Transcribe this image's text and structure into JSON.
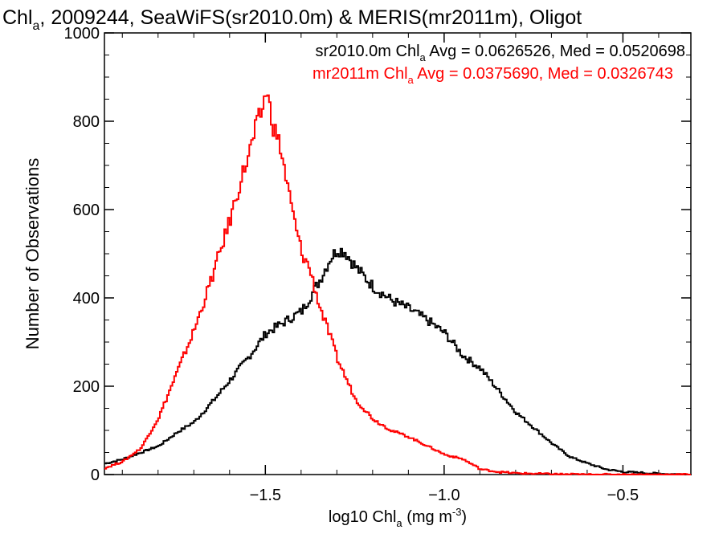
{
  "chart_data": {
    "type": "line",
    "title": {
      "part1": "Chl",
      "sub": "a",
      "part2": ", 2009244, SeaWiFS(sr2010.0m) & MERIS(mr2011m), Oligot"
    },
    "xlabel": {
      "pre": "log10 Chl",
      "sub": "a",
      "mid": " (mg m",
      "sup": "-3",
      "post": ")"
    },
    "ylabel": "Number of Observations",
    "xlim": [
      -1.95,
      -0.31
    ],
    "ylim": [
      0,
      1000
    ],
    "xticks": [
      {
        "value": -1.5,
        "label": "−1.5"
      },
      {
        "value": -1.0,
        "label": "−1.0"
      },
      {
        "value": -0.5,
        "label": "−0.5"
      }
    ],
    "yticks": [
      {
        "value": 0,
        "label": "0"
      },
      {
        "value": 200,
        "label": "200"
      },
      {
        "value": 400,
        "label": "400"
      },
      {
        "value": 600,
        "label": "600"
      },
      {
        "value": 800,
        "label": "800"
      },
      {
        "value": 1000,
        "label": "1000"
      }
    ],
    "grid": false,
    "legend_placement": "top-right",
    "series": [
      {
        "color": "#000000",
        "legend": {
          "pre": "sr2010.0m Chl",
          "sub": "a",
          "post": " Avg = 0.0626526, Med = 0.0520698"
        },
        "x": [
          -1.95,
          -1.9,
          -1.85,
          -1.8,
          -1.75,
          -1.7,
          -1.65,
          -1.6,
          -1.55,
          -1.5,
          -1.45,
          -1.4,
          -1.35,
          -1.32,
          -1.3,
          -1.28,
          -1.25,
          -1.2,
          -1.15,
          -1.1,
          -1.05,
          -1.0,
          -0.95,
          -0.9,
          -0.85,
          -0.8,
          -0.75,
          -0.7,
          -0.65,
          -0.6,
          -0.55,
          -0.5,
          -0.45,
          -0.4,
          -0.35,
          -0.31
        ],
        "y": [
          25,
          35,
          50,
          65,
          95,
          120,
          165,
          215,
          265,
          320,
          345,
          370,
          440,
          490,
          510,
          505,
          470,
          425,
          395,
          375,
          350,
          320,
          270,
          240,
          190,
          140,
          105,
          70,
          40,
          25,
          12,
          6,
          4,
          2,
          1,
          0
        ]
      },
      {
        "color": "#ff0000",
        "legend": {
          "pre": "mr2011m Chl",
          "sub": "a",
          "post": " Avg = 0.0375690, Med = 0.0326743"
        },
        "x": [
          -1.95,
          -1.9,
          -1.85,
          -1.8,
          -1.75,
          -1.7,
          -1.65,
          -1.6,
          -1.57,
          -1.55,
          -1.53,
          -1.51,
          -1.5,
          -1.48,
          -1.46,
          -1.44,
          -1.42,
          -1.4,
          -1.38,
          -1.35,
          -1.32,
          -1.3,
          -1.25,
          -1.2,
          -1.15,
          -1.1,
          -1.05,
          -1.0,
          -0.95,
          -0.9,
          -0.85,
          -0.8,
          -0.75,
          -0.7,
          -0.6,
          -0.5,
          -0.4,
          -0.31
        ],
        "y": [
          15,
          30,
          60,
          130,
          230,
          330,
          450,
          580,
          670,
          720,
          780,
          830,
          870,
          790,
          740,
          650,
          570,
          500,
          470,
          380,
          310,
          260,
          170,
          125,
          100,
          85,
          65,
          45,
          35,
          12,
          6,
          3,
          2,
          1,
          0,
          0,
          0,
          0
        ]
      }
    ]
  }
}
